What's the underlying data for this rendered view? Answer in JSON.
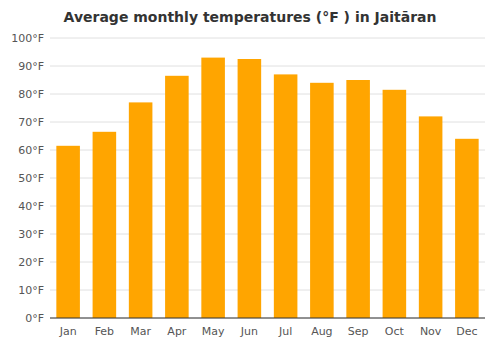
{
  "chart_data": {
    "type": "bar",
    "title": "Average monthly temperatures (°F ) in Jaitāran",
    "categories": [
      "Jan",
      "Feb",
      "Mar",
      "Apr",
      "May",
      "Jun",
      "Jul",
      "Aug",
      "Sep",
      "Oct",
      "Nov",
      "Dec"
    ],
    "values": [
      61.5,
      66.5,
      77.0,
      86.5,
      93.0,
      92.5,
      87.0,
      84.0,
      85.0,
      81.5,
      72.0,
      64.0
    ],
    "color": "#FFA500",
    "ylim": [
      0,
      100
    ],
    "yticks": [
      {
        "value": 0,
        "label": "0°F"
      },
      {
        "value": 10,
        "label": "10°F"
      },
      {
        "value": 20,
        "label": "20°F"
      },
      {
        "value": 30,
        "label": "30°F"
      },
      {
        "value": 40,
        "label": "40°F"
      },
      {
        "value": 50,
        "label": "50°F"
      },
      {
        "value": 60,
        "label": "60°F"
      },
      {
        "value": 70,
        "label": "70°F"
      },
      {
        "value": 80,
        "label": "80°F"
      },
      {
        "value": 90,
        "label": "90°F"
      },
      {
        "value": 100,
        "label": "100°F"
      }
    ],
    "grid": true
  }
}
